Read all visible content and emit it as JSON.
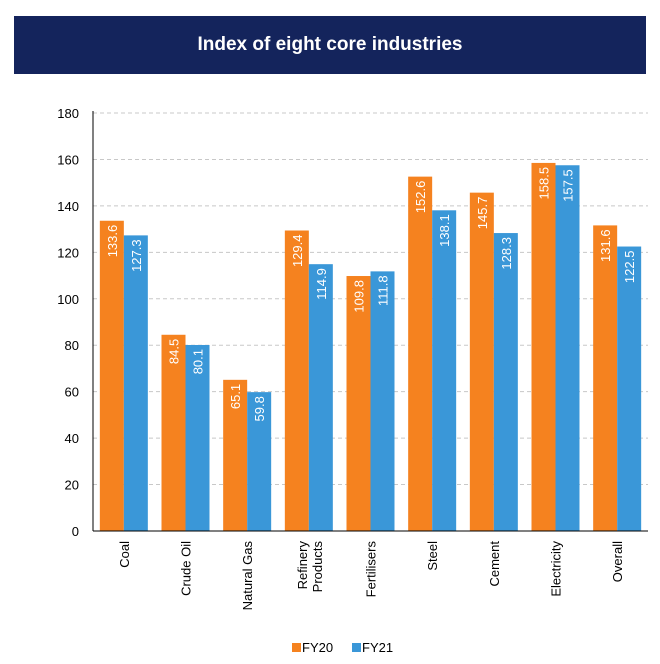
{
  "title": "Index of eight core industries",
  "colors": {
    "header_bg": "#14245c",
    "fy20": "#f5821f",
    "fy21": "#3a97d8"
  },
  "chart_data": {
    "type": "bar",
    "title": "Index of eight core industries",
    "categories": [
      "Coal",
      "Crude Oil",
      "Natural Gas",
      "Refinery Products",
      "Fertilisers",
      "Steel",
      "Cement",
      "Electricity",
      "Overall"
    ],
    "series": [
      {
        "name": "FY20",
        "values": [
          133.6,
          84.5,
          65.1,
          129.4,
          109.8,
          152.6,
          145.7,
          158.5,
          131.6
        ]
      },
      {
        "name": "FY21",
        "values": [
          127.3,
          80.1,
          59.8,
          114.9,
          111.8,
          138.1,
          128.3,
          157.5,
          122.5
        ]
      }
    ],
    "data_labels": {
      "FY20": [
        "133.6",
        "84.5",
        "65.1",
        "129.4",
        "109.8",
        "152.6",
        "145.7",
        "158.5",
        "131.6"
      ],
      "FY21": [
        "127.3",
        "80.1",
        "59.8",
        "114.9",
        "111.8",
        "138.1",
        "128.3",
        "157.5",
        "122.5"
      ]
    },
    "y_ticks": [
      "0",
      "20",
      "40",
      "60",
      "80",
      "100",
      "120",
      "140",
      "160",
      "180"
    ],
    "ylim": [
      0,
      180
    ],
    "xlabel": "",
    "ylabel": "",
    "grid": true,
    "legend": {
      "position": "bottom-center",
      "entries": [
        "FY20",
        "FY21"
      ]
    }
  }
}
